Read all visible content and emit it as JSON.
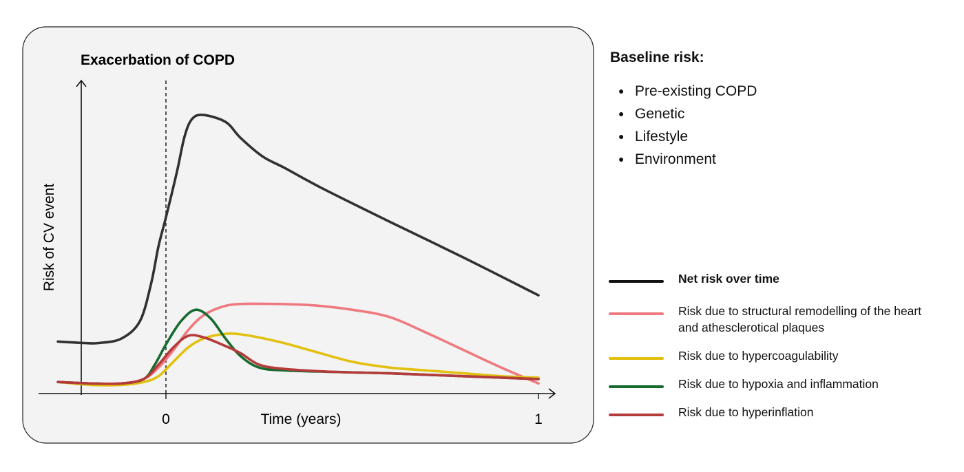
{
  "chart_data": {
    "type": "line",
    "title": "Exacerbation of COPD",
    "xlabel": "Time (years)",
    "ylabel": "Risk of CV event",
    "x_ticks": [
      {
        "value": 0,
        "label": "0"
      },
      {
        "value": 1,
        "label": "1"
      }
    ],
    "xlim": [
      -0.3,
      1.03
    ],
    "ylim": [
      0,
      1
    ],
    "annotations": [
      {
        "type": "vertical-dashed-line",
        "x": 0,
        "label": "Exacerbation of COPD"
      }
    ],
    "grid": false,
    "legend_position": "right",
    "series": [
      {
        "name": "Net risk over time",
        "color": "#333031",
        "x": [
          -0.29,
          -0.22,
          -0.18,
          -0.12,
          -0.07,
          -0.04,
          -0.02,
          0.0,
          0.03,
          0.05,
          0.07,
          0.1,
          0.16,
          0.2,
          0.26,
          0.32,
          0.42,
          0.6,
          0.8,
          1.0
        ],
        "y": [
          0.18,
          0.175,
          0.175,
          0.19,
          0.25,
          0.38,
          0.51,
          0.61,
          0.77,
          0.89,
          0.95,
          0.964,
          0.94,
          0.885,
          0.82,
          0.78,
          0.71,
          0.595,
          0.47,
          0.34
        ]
      },
      {
        "name": "Risk due to structural remodelling of the heart and athesclerotical plaques",
        "color": "#ee7a80",
        "x": [
          -0.29,
          -0.2,
          -0.12,
          -0.06,
          -0.02,
          0.02,
          0.06,
          0.1,
          0.15,
          0.2,
          0.3,
          0.4,
          0.5,
          0.6,
          0.7,
          0.8,
          0.9,
          1.0
        ],
        "y": [
          0.04,
          0.035,
          0.035,
          0.05,
          0.09,
          0.15,
          0.22,
          0.27,
          0.3,
          0.31,
          0.31,
          0.305,
          0.29,
          0.265,
          0.21,
          0.15,
          0.09,
          0.035
        ]
      },
      {
        "name": "Risk due to hypercoagulability",
        "color": "#e2c010",
        "x": [
          -0.29,
          -0.2,
          -0.12,
          -0.06,
          -0.02,
          0.02,
          0.06,
          0.1,
          0.15,
          0.2,
          0.3,
          0.4,
          0.5,
          0.6,
          0.7,
          0.8,
          0.9,
          1.0
        ],
        "y": [
          0.04,
          0.03,
          0.03,
          0.04,
          0.06,
          0.11,
          0.16,
          0.19,
          0.205,
          0.205,
          0.18,
          0.145,
          0.11,
          0.09,
          0.08,
          0.07,
          0.06,
          0.055
        ]
      },
      {
        "name": "Risk due to hypoxia and inflammation",
        "color": "#176b2f",
        "x": [
          -0.29,
          -0.2,
          -0.12,
          -0.06,
          -0.03,
          0.0,
          0.04,
          0.08,
          0.12,
          0.16,
          0.2,
          0.25,
          0.32,
          0.45,
          0.6,
          0.8,
          1.0
        ],
        "y": [
          0.04,
          0.035,
          0.035,
          0.05,
          0.1,
          0.17,
          0.25,
          0.29,
          0.26,
          0.19,
          0.13,
          0.09,
          0.08,
          0.075,
          0.07,
          0.06,
          0.05
        ]
      },
      {
        "name": "Risk due to hyperinflation",
        "color": "#b53a3a",
        "x": [
          -0.29,
          -0.2,
          -0.12,
          -0.06,
          -0.02,
          0.02,
          0.06,
          0.1,
          0.15,
          0.2,
          0.25,
          0.32,
          0.45,
          0.6,
          0.8,
          1.0
        ],
        "y": [
          0.04,
          0.035,
          0.035,
          0.05,
          0.1,
          0.16,
          0.2,
          0.195,
          0.17,
          0.14,
          0.1,
          0.085,
          0.075,
          0.07,
          0.06,
          0.05
        ]
      }
    ]
  },
  "baseline": {
    "title": "Baseline risk:",
    "items": [
      "Pre-existing COPD",
      "Genetic",
      "Lifestyle",
      "Environment"
    ]
  },
  "colors": {
    "panel_background": "#f3f3f3",
    "panel_border": "#222222",
    "axis": "#111111"
  }
}
